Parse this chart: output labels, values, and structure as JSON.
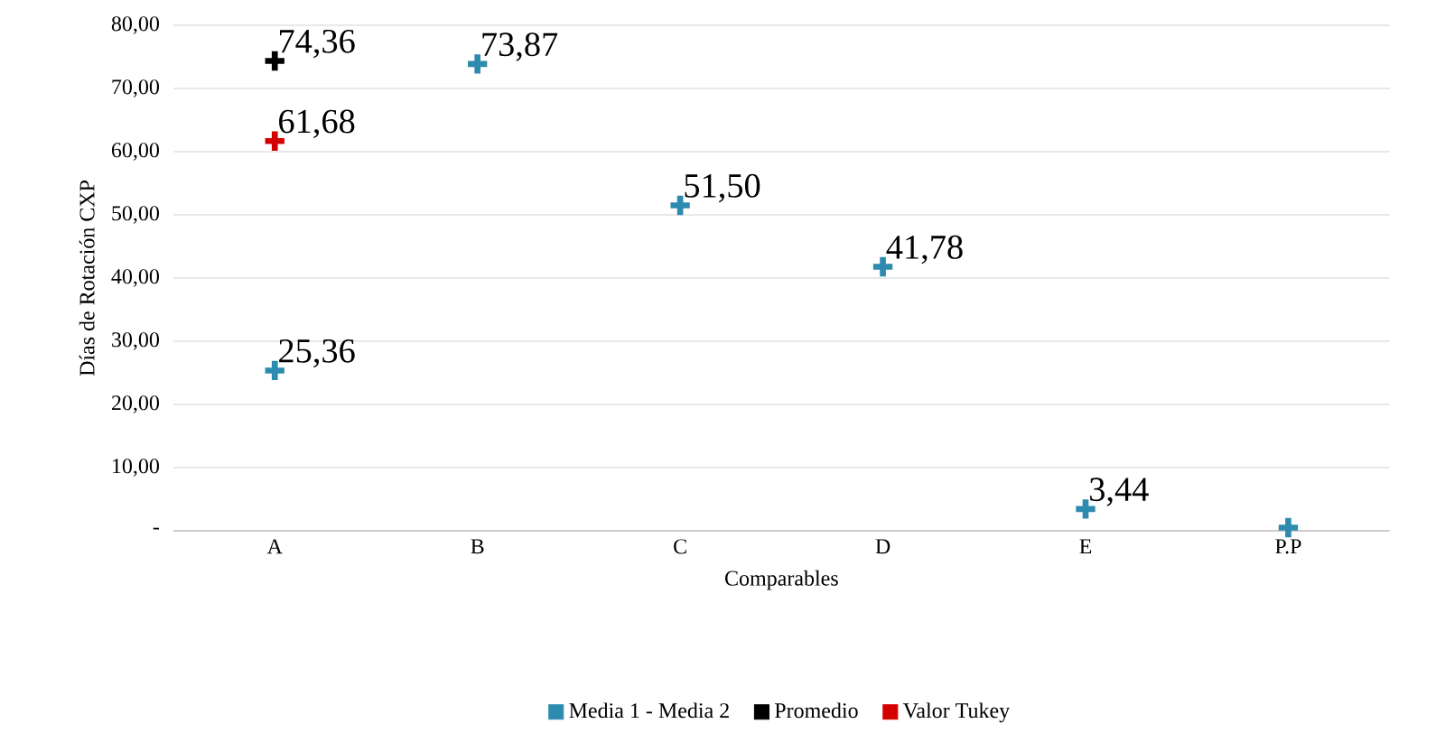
{
  "chart_data": {
    "type": "scatter",
    "xlabel": "Comparables",
    "ylabel": "Días de Rotación CXP",
    "categories": [
      "A",
      "B",
      "C",
      "D",
      "E",
      "P.P"
    ],
    "series": [
      {
        "name": "Media 1 - Media 2",
        "color": "#2e8bb0",
        "values": [
          25.36,
          73.87,
          51.5,
          41.78,
          3.44,
          0.5
        ],
        "value_labels": [
          "25,36",
          "73,87",
          "51,50",
          "41,78",
          "3,44",
          null
        ]
      },
      {
        "name": "Promedio",
        "color": "#000000",
        "values": [
          74.36,
          null,
          null,
          null,
          null,
          null
        ],
        "value_labels": [
          "74,36",
          null,
          null,
          null,
          null,
          null
        ]
      },
      {
        "name": "Valor Tukey",
        "color": "#d40000",
        "values": [
          61.68,
          null,
          null,
          null,
          null,
          null
        ],
        "value_labels": [
          "61,68",
          null,
          null,
          null,
          null,
          null
        ]
      }
    ],
    "ylim": [
      0,
      80
    ],
    "yticks": [
      {
        "value": 0,
        "label": "-"
      },
      {
        "value": 10,
        "label": "10,00"
      },
      {
        "value": 20,
        "label": "20,00"
      },
      {
        "value": 30,
        "label": "30,00"
      },
      {
        "value": 40,
        "label": "40,00"
      },
      {
        "value": 50,
        "label": "50,00"
      },
      {
        "value": 60,
        "label": "60,00"
      },
      {
        "value": 70,
        "label": "70,00"
      },
      {
        "value": 80,
        "label": "80,00"
      }
    ],
    "grid": "y",
    "legend": "bottom",
    "marker": "cross"
  }
}
